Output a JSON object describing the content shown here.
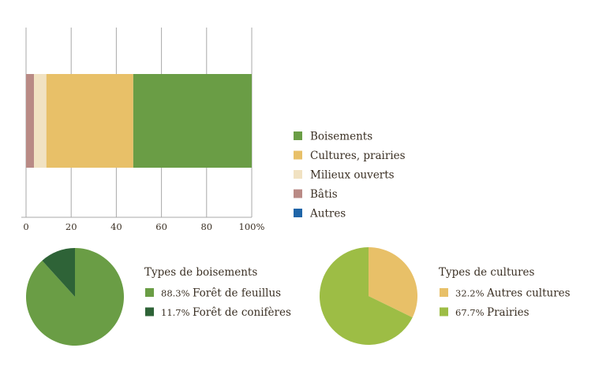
{
  "chart_data": [
    {
      "type": "bar",
      "orientation": "horizontal-stacked",
      "xlim": [
        0,
        100
      ],
      "x_ticks": [
        "0",
        "20",
        "40",
        "60",
        "80",
        "100%"
      ],
      "x_tick_values": [
        0,
        20,
        40,
        60,
        80,
        100
      ],
      "grid": true,
      "legend_position": "right",
      "series": [
        {
          "name": "Bâtis",
          "value": 3.5,
          "color": "#b98a85"
        },
        {
          "name": "Milieux ouverts",
          "value": 5.5,
          "color": "#f1e2c2"
        },
        {
          "name": "Cultures, prairies",
          "value": 38.5,
          "color": "#e8c068"
        },
        {
          "name": "Boisements",
          "value": 52.5,
          "color": "#6a9d45"
        },
        {
          "name": "Autres",
          "value": 0,
          "color": "#1f65a8"
        }
      ],
      "legend": [
        {
          "name": "Boisements",
          "color": "#6a9d45"
        },
        {
          "name": "Cultures, prairies",
          "color": "#e8c068"
        },
        {
          "name": "Milieux ouverts",
          "color": "#f1e2c2"
        },
        {
          "name": "Bâtis",
          "color": "#b98a85"
        },
        {
          "name": "Autres",
          "color": "#1f65a8"
        }
      ]
    },
    {
      "type": "pie",
      "title": "Types de boisements",
      "slices": [
        {
          "label": "Forêt de feuillus",
          "value": 88.3,
          "display": "88.3%",
          "color": "#6a9d45"
        },
        {
          "label": "Forêt de conifères",
          "value": 11.7,
          "display": "11.7%",
          "color": "#2e6337"
        }
      ]
    },
    {
      "type": "pie",
      "title": "Types de cultures",
      "slices": [
        {
          "label": "Autres cultures",
          "value": 32.2,
          "display": "32.2%",
          "color": "#e8c068"
        },
        {
          "label": "Prairies",
          "value": 67.7,
          "display": "67.7%",
          "color": "#9dbd45"
        }
      ]
    }
  ]
}
